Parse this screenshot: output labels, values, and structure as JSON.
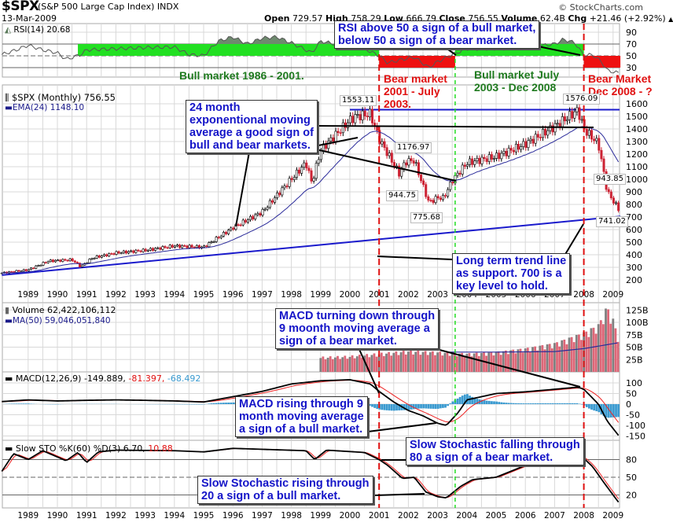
{
  "header": {
    "symbol": "$SPX",
    "name": "(S&P 500 Large Cap Index) INDX",
    "date": "13-Mar-2009",
    "copyright": "© StockCharts.com",
    "open_label": "Open",
    "open": "729.57",
    "high_label": "High",
    "high": "758.29",
    "low_label": "Low",
    "low": "666.79",
    "close_label": "Close",
    "close": "756.55",
    "volume_label": "Volume",
    "volume": "62.4B",
    "chg_label": "Chg",
    "chg": "+21.46 (+2.92%)",
    "chg_icon": "up-triangle-icon"
  },
  "legends": {
    "rsi": "RSI(14) 20.68",
    "price": "$SPX (Monthly) 756.55",
    "ema": "EMA(24) 1148.10",
    "volume": "Volume 62,422,106,112",
    "volume_ma": "MA(50) 59,046,051,840",
    "macd": "MACD(12,26,9) -149.889,",
    "macd_signal": "-81.397,",
    "macd_hist": "-68.492",
    "stoch": "Slow STO %K(60) %D(3) 6.70,",
    "stoch_d": "10.88"
  },
  "annotations": {
    "rsi_note": [
      "RSI above 50 a sign of a bull market,",
      "below 50 a sign of a bear market."
    ],
    "bull_1": "Bull market 1986 - 2001.",
    "bear_1": [
      "Bear market",
      "2001 - July",
      "2003."
    ],
    "bull_2": [
      "Bull market July",
      "2003 - Dec 2008"
    ],
    "bear_2": [
      "Bear Market",
      "Dec 2008 - ?"
    ],
    "ema_note": [
      "24 month",
      "exponentional moving",
      "average a good sign of",
      "bull and bear markets."
    ],
    "trend_note": [
      "Long term trend line",
      "as support. 700 is a",
      "key level to hold."
    ],
    "macd_down": [
      "MACD turning down through",
      "9 moonth moving average a",
      "sign of a bear market."
    ],
    "macd_up": [
      "MACD rising through 9",
      "month moving average",
      "a sign of a bull market."
    ],
    "stoch_down": [
      "Slow Stochastic falling through",
      "80 a sign of a bear market."
    ],
    "stoch_up": [
      "Slow Stochastic rising through",
      "20 a sign of a bull market."
    ]
  },
  "price_labels": [
    "1553.11",
    "1176.97",
    "944.75",
    "775.68",
    "1576.09",
    "943.85",
    "741.02"
  ],
  "colors": {
    "up": "#000000",
    "down": "#cc2233",
    "ema": "#2a2a9a",
    "trendline": "#1a1acc",
    "bull_zone": "#22e022",
    "bear_zone": "#ee1111",
    "rsi_fill": "#6e8a6e",
    "vol_up": "#808080",
    "vol_down": "#dd6677",
    "macd_hist": "#3a9ad0",
    "signal": "#ee2222",
    "grid": "#d8d8d8"
  },
  "chart_data": [
    {
      "type": "line",
      "ylim": [
        10,
        100
      ],
      "yticks": [
        30,
        50,
        70,
        90
      ],
      "x": [
        1988.1,
        1988.6,
        1989.0,
        1989.5,
        1990.0,
        1990.3,
        1990.8,
        1991.0,
        1992,
        1993,
        1994,
        1994.5,
        1995,
        1995.5,
        1996,
        1996.5,
        1997,
        1997.5,
        1998,
        1998.7,
        1999,
        1999.7,
        2000,
        2000.5,
        2001,
        2001.3,
        2001.8,
        2002.2,
        2002.7,
        2003,
        2003.5,
        2004,
        2005,
        2006,
        2007,
        2007.3,
        2007.7,
        2008,
        2008.3,
        2008.6,
        2008.8,
        2009.2
      ],
      "values": [
        52,
        60,
        68,
        60,
        55,
        44,
        52,
        60,
        62,
        64,
        65,
        52,
        50,
        75,
        82,
        70,
        80,
        82,
        72,
        55,
        75,
        68,
        72,
        62,
        50,
        38,
        44,
        48,
        30,
        40,
        52,
        62,
        62,
        64,
        70,
        78,
        72,
        50,
        52,
        40,
        25,
        20.68
      ],
      "zones": [
        {
          "from": 1990.7,
          "to": 2001.0,
          "low": 50,
          "high": 70,
          "kind": "bull"
        },
        {
          "from": 2001.0,
          "to": 2003.6,
          "low": 30,
          "high": 50,
          "kind": "bear"
        },
        {
          "from": 2003.6,
          "to": 2008.0,
          "low": 50,
          "high": 70,
          "kind": "bull"
        },
        {
          "from": 2008.0,
          "to": 2009.25,
          "low": 30,
          "high": 50,
          "kind": "bear"
        }
      ]
    },
    {
      "type": "ohlc",
      "ylim": [
        150,
        1650
      ],
      "yticks": [
        200,
        300,
        400,
        500,
        600,
        700,
        800,
        900,
        1000,
        1100,
        1200,
        1300,
        1400,
        1500,
        1600
      ],
      "xticks": [
        1989,
        1990,
        1991,
        1992,
        1993,
        1994,
        1995,
        1996,
        1997,
        1998,
        1999,
        2000,
        2001,
        2002,
        2003,
        2004,
        2005,
        2006,
        2007,
        2008,
        2009
      ],
      "x": [
        1988.1,
        1989.0,
        1989.7,
        1990.5,
        1990.8,
        1991.2,
        1992,
        1993,
        1994,
        1995,
        1996,
        1997,
        1997.8,
        1998.5,
        1998.7,
        1999,
        2000.0,
        2000.2,
        2000.7,
        2001.0,
        2001.7,
        2001.9,
        2002.2,
        2002.7,
        2003.0,
        2003.2,
        2003.5,
        2004,
        2005,
        2006,
        2007,
        2007.8,
        2008,
        2008.5,
        2008.8,
        2009.0,
        2009.2
      ],
      "values": [
        255,
        280,
        350,
        360,
        305,
        375,
        415,
        435,
        470,
        460,
        615,
        740,
        950,
        1130,
        970,
        1230,
        1470,
        1500,
        1520,
        1320,
        1040,
        1140,
        1150,
        815,
        855,
        850,
        990,
        1130,
        1180,
        1280,
        1420,
        1550,
        1400,
        1280,
        900,
        830,
        757
      ],
      "ema_period": 24,
      "resistance": {
        "value": 1553,
        "from": 2000.0
      },
      "trendline": {
        "from": [
          1988.1,
          238
        ],
        "to": [
          2009.25,
          705
        ]
      },
      "vlines": [
        {
          "x": 2001.0,
          "kind": "bear"
        },
        {
          "x": 2003.6,
          "kind": "bull"
        },
        {
          "x": 2008.0,
          "kind": "bear"
        }
      ]
    },
    {
      "type": "bar",
      "ylim": [
        0,
        135
      ],
      "yticks": [
        25,
        50,
        75,
        100,
        125
      ],
      "tick_suffix": "B",
      "x": [
        1999.0,
        2000,
        2001,
        2002,
        2003,
        2004,
        2005,
        2006,
        2007,
        2008,
        2008.5,
        2008.8,
        2009.0,
        2009.2
      ],
      "values": [
        28,
        30,
        35,
        40,
        38,
        35,
        38,
        45,
        55,
        75,
        90,
        125,
        100,
        62.4
      ],
      "ma50": {
        "x": [
          2003.4,
          2005,
          2007,
          2008,
          2009.2
        ],
        "values": [
          40,
          40,
          41,
          47,
          59
        ]
      }
    },
    {
      "type": "line",
      "ylim": [
        -170,
        120
      ],
      "yticks": [
        -150,
        -100,
        -50,
        0,
        50,
        100
      ],
      "x": [
        1988.1,
        1989,
        1990,
        1991,
        1992,
        1993,
        1994,
        1995,
        1996,
        1997,
        1998,
        1999,
        2000,
        2000.7,
        2001,
        2001.5,
        2002,
        2002.5,
        2003,
        2003.3,
        2003.7,
        2004,
        2005,
        2006,
        2007,
        2007.8,
        2008,
        2008.5,
        2008.8,
        2009.2
      ],
      "values": [
        12,
        20,
        15,
        18,
        20,
        18,
        15,
        10,
        35,
        60,
        95,
        110,
        115,
        95,
        60,
        10,
        -30,
        -55,
        -90,
        -100,
        -40,
        20,
        50,
        58,
        70,
        80,
        70,
        0,
        -80,
        -149.9
      ],
      "signal_period": 9
    },
    {
      "type": "line",
      "ylim": [
        0,
        100
      ],
      "yticks": [
        20,
        50,
        80
      ],
      "x": [
        1988.1,
        1988.5,
        1989,
        1989.5,
        1990.3,
        1990.7,
        1991.0,
        1991.4,
        1992,
        1994,
        1995,
        1996,
        1998.5,
        1998.8,
        1999.2,
        2000.5,
        2001,
        2001.3,
        2001.8,
        2002.2,
        2002.6,
        2003.0,
        2003.3,
        2003.8,
        2004.2,
        2005,
        2005.5,
        2006,
        2006.5,
        2007.4,
        2007.8,
        2008,
        2008.3,
        2008.7,
        2009.0,
        2009.2
      ],
      "values": [
        60,
        90,
        80,
        95,
        78,
        92,
        75,
        93,
        96,
        95,
        93,
        99,
        95,
        80,
        96,
        92,
        80,
        70,
        48,
        50,
        25,
        17,
        15,
        35,
        46,
        50,
        60,
        70,
        80,
        96,
        88,
        82,
        68,
        40,
        20,
        6.7
      ],
      "d_period": 3
    }
  ]
}
